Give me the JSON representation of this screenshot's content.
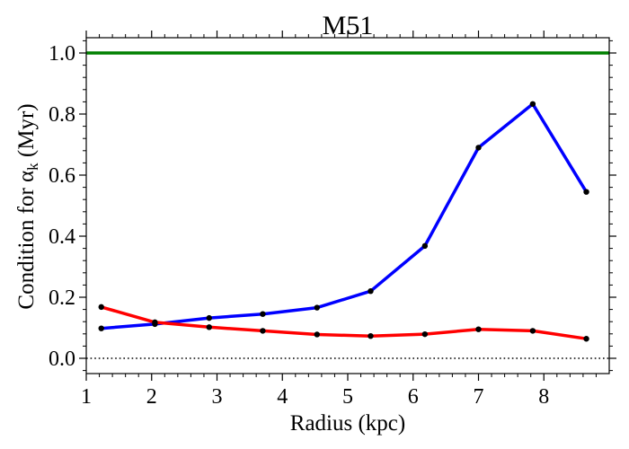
{
  "chart_data": {
    "type": "line",
    "title": "M51",
    "xlabel": "Radius (kpc)",
    "ylabel_main": "Condition for α",
    "ylabel_sub": "k",
    "ylabel_unit": " (Myr)",
    "xlim": [
      1.0,
      9.0
    ],
    "ylim": [
      -0.05,
      1.05
    ],
    "x_ticks": [
      1,
      2,
      3,
      4,
      5,
      6,
      7,
      8
    ],
    "x_tick_labels": [
      "1",
      "2",
      "3",
      "4",
      "5",
      "6",
      "7",
      "8"
    ],
    "y_ticks": [
      0.0,
      0.2,
      0.4,
      0.6,
      0.8,
      1.0
    ],
    "y_tick_labels": [
      "0.0",
      "0.2",
      "0.4",
      "0.6",
      "0.8",
      "1.0"
    ],
    "x": [
      1.23,
      2.05,
      2.88,
      3.7,
      4.53,
      5.35,
      6.18,
      7.0,
      7.83,
      8.65
    ],
    "series": [
      {
        "color": "#0000ff",
        "values": [
          0.098,
          0.112,
          0.132,
          0.145,
          0.166,
          0.22,
          0.368,
          0.69,
          0.833,
          0.545
        ]
      },
      {
        "color": "#ff0000",
        "values": [
          0.168,
          0.118,
          0.102,
          0.09,
          0.078,
          0.073,
          0.079,
          0.095,
          0.09,
          0.064
        ]
      }
    ],
    "reference_lines": [
      {
        "y": 1.0,
        "color": "#008000",
        "style": "solid"
      },
      {
        "y": 0.0,
        "color": "#000000",
        "style": "dotted"
      }
    ],
    "marker_color": "#000000",
    "grid": false,
    "legend": "none"
  }
}
